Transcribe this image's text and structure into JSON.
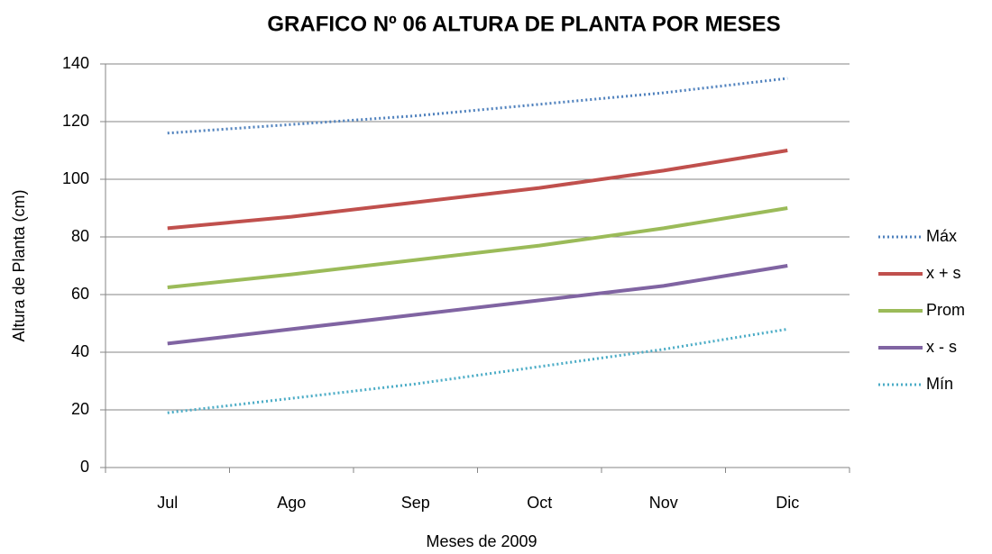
{
  "chart_data": {
    "type": "line",
    "title": "GRAFICO Nº 06 ALTURA DE PLANTA POR MESES",
    "x_label": "Meses de 2009",
    "y_label": "Altura de Planta (cm)",
    "categories": [
      "Jul",
      "Ago",
      "Sep",
      "Oct",
      "Nov",
      "Dic"
    ],
    "series": [
      {
        "name": "Máx",
        "color": "#4f81bd",
        "line_style": "dotted",
        "values": [
          116,
          119,
          122,
          126,
          130,
          135
        ]
      },
      {
        "name": "x + s",
        "color": "#c0504d",
        "line_style": "solid",
        "values": [
          83,
          87,
          92,
          97,
          103,
          110
        ]
      },
      {
        "name": "Prom",
        "color": "#9bbb59",
        "line_style": "solid",
        "values": [
          62.5,
          67,
          72,
          77,
          83,
          90
        ]
      },
      {
        "name": "x - s",
        "color": "#8064a2",
        "line_style": "solid",
        "values": [
          43,
          48,
          53,
          58,
          63,
          70
        ]
      },
      {
        "name": "Mín",
        "color": "#4bacc6",
        "line_style": "dotted",
        "values": [
          19,
          24,
          29,
          35,
          41,
          48
        ]
      }
    ],
    "ylim": [
      0,
      140
    ],
    "yticks": [
      0,
      20,
      40,
      60,
      80,
      100,
      120,
      140
    ],
    "grid": true,
    "legend": "right"
  }
}
